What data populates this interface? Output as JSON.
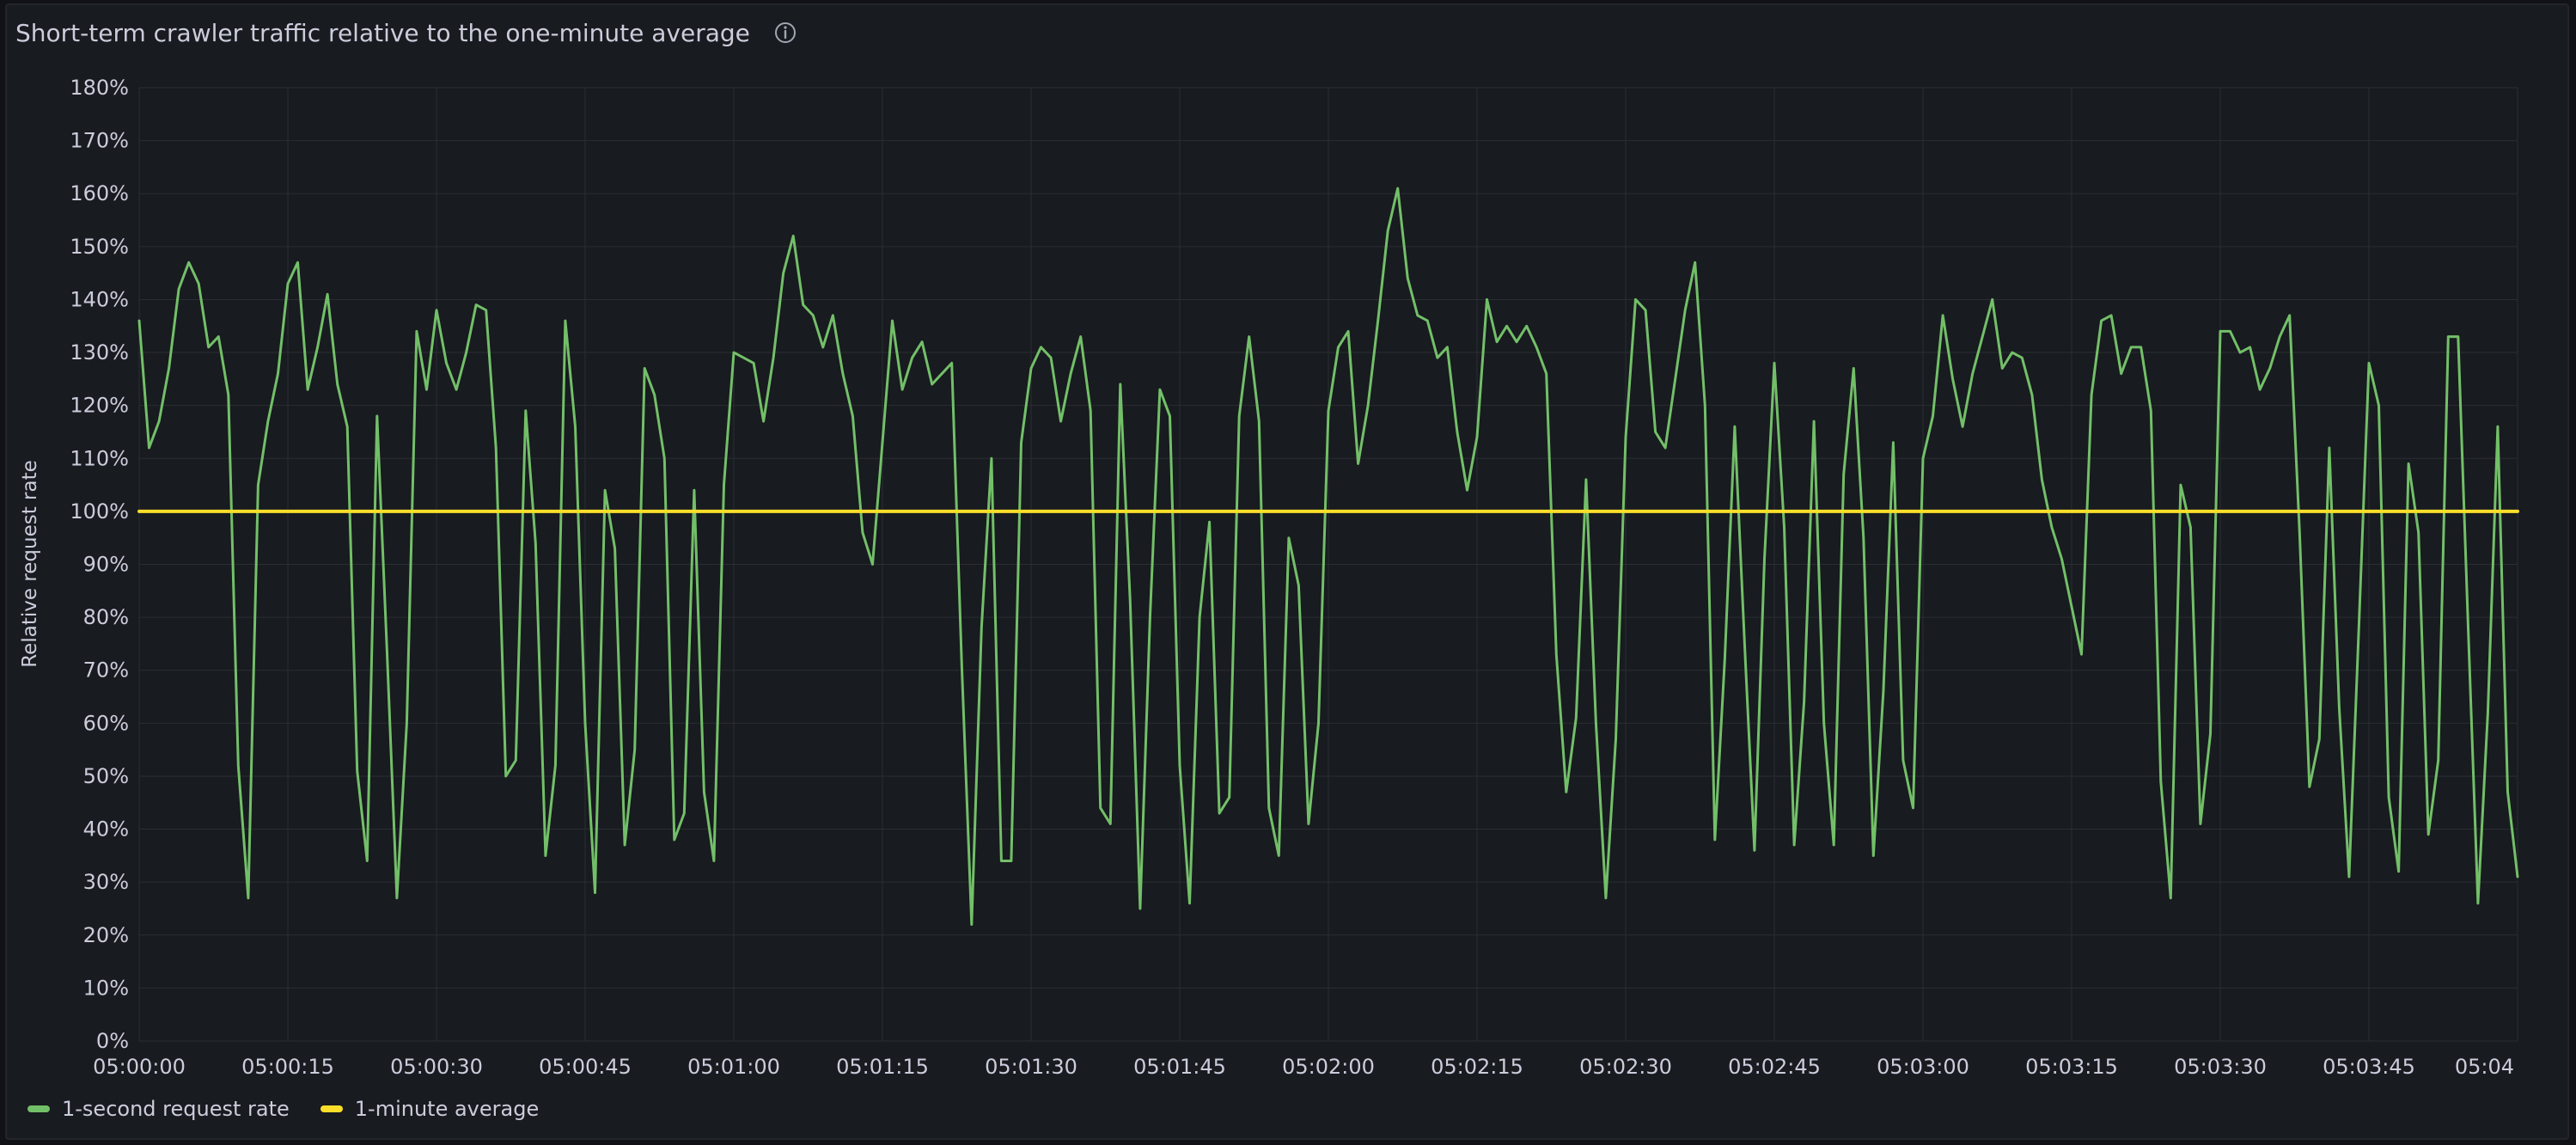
{
  "panel": {
    "title": "Short-term crawler traffic relative to the one-minute average",
    "info_icon": "info-circle-icon"
  },
  "colors": {
    "background": "#181b1f",
    "grid": "#2a2d33",
    "axis_text": "#ccccdc",
    "rate_series": "#73bf69",
    "average_series": "#fade2a"
  },
  "chart_data": {
    "type": "line",
    "title": "Short-term crawler traffic relative to the one-minute average",
    "ylabel": "Relative request rate",
    "xlabel": "",
    "ylim": [
      0,
      180
    ],
    "y_unit": "%",
    "y_ticks": [
      "0%",
      "10%",
      "20%",
      "30%",
      "40%",
      "50%",
      "60%",
      "70%",
      "80%",
      "90%",
      "100%",
      "110%",
      "120%",
      "130%",
      "140%",
      "150%",
      "160%",
      "170%",
      "180%"
    ],
    "x_range": [
      "05:00:00",
      "05:04:00"
    ],
    "x_ticks": [
      "05:00:00",
      "05:00:15",
      "05:00:30",
      "05:00:45",
      "05:01:00",
      "05:01:15",
      "05:01:30",
      "05:01:45",
      "05:02:00",
      "05:02:15",
      "05:02:30",
      "05:02:45",
      "05:03:00",
      "05:03:15",
      "05:03:30",
      "05:03:45",
      "05:04"
    ],
    "grid": true,
    "legend_position": "bottom-left",
    "series": [
      {
        "name": "1-second request rate",
        "color": "#73bf69",
        "x": [
          "05:00:00",
          "05:00:01",
          "05:00:02",
          "05:00:03",
          "05:00:04",
          "05:00:05",
          "05:00:06",
          "05:00:07",
          "05:00:08",
          "05:00:09",
          "05:00:10",
          "05:00:11",
          "05:00:12",
          "05:00:13",
          "05:00:14",
          "05:00:15",
          "05:00:16",
          "05:00:17",
          "05:00:18",
          "05:00:19",
          "05:00:20",
          "05:00:21",
          "05:00:22",
          "05:00:23",
          "05:00:24",
          "05:00:25",
          "05:00:26",
          "05:00:27",
          "05:00:28",
          "05:00:29",
          "05:00:30",
          "05:00:31",
          "05:00:32",
          "05:00:33",
          "05:00:34",
          "05:00:35",
          "05:00:36",
          "05:00:37",
          "05:00:38",
          "05:00:39",
          "05:00:40",
          "05:00:41",
          "05:00:42",
          "05:00:43",
          "05:00:44",
          "05:00:45",
          "05:00:46",
          "05:00:47",
          "05:00:48",
          "05:00:49",
          "05:00:50",
          "05:00:51",
          "05:00:52",
          "05:00:53",
          "05:00:54",
          "05:00:55",
          "05:00:56",
          "05:00:57",
          "05:00:58",
          "05:00:59",
          "05:01:00",
          "05:01:01",
          "05:01:02",
          "05:01:03",
          "05:01:04",
          "05:01:05",
          "05:01:06",
          "05:01:07",
          "05:01:08",
          "05:01:09",
          "05:01:10",
          "05:01:11",
          "05:01:12",
          "05:01:13",
          "05:01:14",
          "05:01:15",
          "05:01:16",
          "05:01:17",
          "05:01:18",
          "05:01:19",
          "05:01:20",
          "05:01:21",
          "05:01:22",
          "05:01:23",
          "05:01:24",
          "05:01:25",
          "05:01:26",
          "05:01:27",
          "05:01:28",
          "05:01:29",
          "05:01:30",
          "05:01:31",
          "05:01:32",
          "05:01:33",
          "05:01:34",
          "05:01:35",
          "05:01:36",
          "05:01:37",
          "05:01:38",
          "05:01:39",
          "05:01:40",
          "05:01:41",
          "05:01:42",
          "05:01:43",
          "05:01:44",
          "05:01:45",
          "05:01:46",
          "05:01:47",
          "05:01:48",
          "05:01:49",
          "05:01:50",
          "05:01:51",
          "05:01:52",
          "05:01:53",
          "05:01:54",
          "05:01:55",
          "05:01:56",
          "05:01:57",
          "05:01:58",
          "05:01:59",
          "05:02:00",
          "05:02:01",
          "05:02:02",
          "05:02:03",
          "05:02:04",
          "05:02:05",
          "05:02:06",
          "05:02:07",
          "05:02:08",
          "05:02:09",
          "05:02:10",
          "05:02:11",
          "05:02:12",
          "05:02:13",
          "05:02:14",
          "05:02:15",
          "05:02:16",
          "05:02:17",
          "05:02:18",
          "05:02:19",
          "05:02:20",
          "05:02:21",
          "05:02:22",
          "05:02:23",
          "05:02:24",
          "05:02:25",
          "05:02:26",
          "05:02:27",
          "05:02:28",
          "05:02:29",
          "05:02:30",
          "05:02:31",
          "05:02:32",
          "05:02:33",
          "05:02:34",
          "05:02:35",
          "05:02:36",
          "05:02:37",
          "05:02:38",
          "05:02:39",
          "05:02:40",
          "05:02:41",
          "05:02:42",
          "05:02:43",
          "05:02:44",
          "05:02:45",
          "05:02:46",
          "05:02:47",
          "05:02:48",
          "05:02:49",
          "05:02:50",
          "05:02:51",
          "05:02:52",
          "05:02:53",
          "05:02:54",
          "05:02:55",
          "05:02:56",
          "05:02:57",
          "05:02:58",
          "05:02:59",
          "05:03:00",
          "05:03:01",
          "05:03:02",
          "05:03:03",
          "05:03:04",
          "05:03:05",
          "05:03:06",
          "05:03:07",
          "05:03:08",
          "05:03:09",
          "05:03:10",
          "05:03:11",
          "05:03:12",
          "05:03:13",
          "05:03:14",
          "05:03:15",
          "05:03:16",
          "05:03:17",
          "05:03:18",
          "05:03:19",
          "05:03:20",
          "05:03:21",
          "05:03:22",
          "05:03:23",
          "05:03:24",
          "05:03:25",
          "05:03:26",
          "05:03:27",
          "05:03:28",
          "05:03:29",
          "05:03:30",
          "05:03:31",
          "05:03:32",
          "05:03:33",
          "05:03:34",
          "05:03:35",
          "05:03:36",
          "05:03:37",
          "05:03:38",
          "05:03:39",
          "05:03:40",
          "05:03:41",
          "05:03:42",
          "05:03:43",
          "05:03:44",
          "05:03:45",
          "05:03:46",
          "05:03:47",
          "05:03:48",
          "05:03:49",
          "05:03:50",
          "05:03:51",
          "05:03:52",
          "05:03:53",
          "05:03:54",
          "05:03:55",
          "05:03:56",
          "05:03:57",
          "05:03:58",
          "05:03:59",
          "05:04:00"
        ],
        "values": [
          136,
          112,
          117,
          127,
          142,
          147,
          143,
          131,
          133,
          122,
          52,
          27,
          105,
          117,
          126,
          143,
          147,
          123,
          131,
          141,
          124,
          116,
          51,
          34,
          118,
          74,
          27,
          60,
          134,
          123,
          138,
          128,
          123,
          130,
          139,
          138,
          112,
          50,
          53,
          119,
          94,
          35,
          52,
          136,
          116,
          60,
          28,
          104,
          93,
          37,
          55,
          127,
          122,
          110,
          38,
          43,
          104,
          47,
          34,
          105,
          130,
          129,
          128,
          117,
          129,
          145,
          152,
          139,
          137,
          131,
          137,
          126,
          118,
          96,
          90,
          113,
          136,
          123,
          129,
          132,
          124,
          126,
          128,
          71,
          22,
          78,
          110,
          34,
          34,
          113,
          127,
          131,
          129,
          117,
          126,
          133,
          119,
          44,
          41,
          124,
          83,
          25,
          80,
          123,
          118,
          52,
          26,
          80,
          98,
          43,
          46,
          118,
          133,
          117,
          44,
          35,
          95,
          86,
          41,
          60,
          119,
          131,
          134,
          109,
          120,
          136,
          153,
          161,
          144,
          137,
          136,
          129,
          131,
          115,
          104,
          114,
          140,
          132,
          135,
          132,
          135,
          131,
          126,
          73,
          47,
          61,
          106,
          60,
          27,
          57,
          114,
          140,
          138,
          115,
          112,
          125,
          138,
          147,
          120,
          38,
          72,
          116,
          75,
          36,
          91,
          128,
          97,
          37,
          64,
          117,
          60,
          37,
          107,
          127,
          95,
          35,
          66,
          113,
          53,
          44,
          110,
          118,
          137,
          125,
          116,
          126,
          133,
          140,
          127,
          130,
          129,
          122,
          106,
          97,
          91,
          82,
          73,
          122,
          136,
          137,
          126,
          131,
          131,
          119,
          49,
          27,
          105,
          97,
          41,
          58,
          134,
          134,
          130,
          131,
          123,
          127,
          133,
          137,
          96,
          48,
          57,
          112,
          63,
          31,
          79,
          128,
          120,
          46,
          32,
          109,
          96,
          39,
          53,
          133,
          133,
          79,
          26,
          62,
          116,
          47,
          31
        ]
      },
      {
        "name": "1-minute average",
        "color": "#fade2a",
        "x": [
          "05:00:00",
          "05:04:00"
        ],
        "values": [
          100,
          100
        ]
      }
    ]
  },
  "legend": [
    {
      "label": "1-second request rate",
      "color": "#73bf69"
    },
    {
      "label": "1-minute average",
      "color": "#fade2a"
    }
  ]
}
